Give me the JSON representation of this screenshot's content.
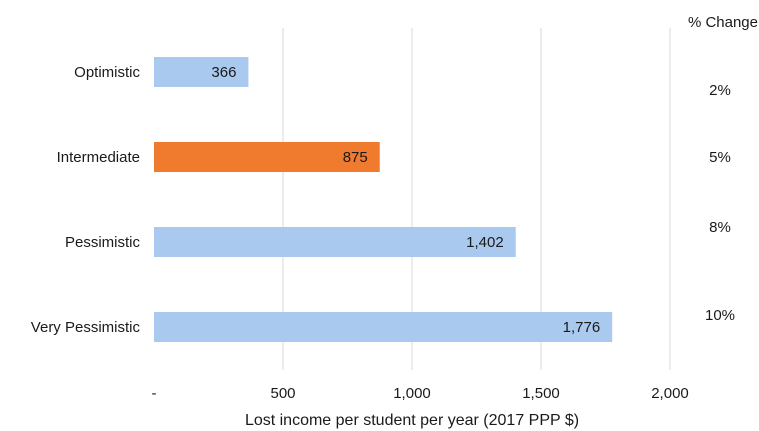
{
  "chart_data": {
    "type": "bar",
    "orientation": "horizontal",
    "categories": [
      "Optimistic",
      "Intermediate",
      "Pessimistic",
      "Very Pessimistic"
    ],
    "values": [
      366,
      875,
      1402,
      1776
    ],
    "value_labels": [
      "366",
      "875",
      "1,402",
      "1,776"
    ],
    "bar_colors": [
      "#a9c9ee",
      "#f07a2e",
      "#a9c9ee",
      "#a9c9ee"
    ],
    "highlight_category": "Intermediate",
    "xlabel": "Lost income per student per year (2017 PPP $)",
    "ylabel": "",
    "xlim": [
      0,
      2000
    ],
    "xticks": [
      0,
      500,
      1000,
      1500,
      2000
    ],
    "xtick_labels": [
      "-",
      "500",
      "1,000",
      "1,500",
      "2,000"
    ],
    "grid": true,
    "percent_change": {
      "header": "% Change",
      "values": [
        "2%",
        "5%",
        "8%",
        "10%"
      ]
    }
  }
}
